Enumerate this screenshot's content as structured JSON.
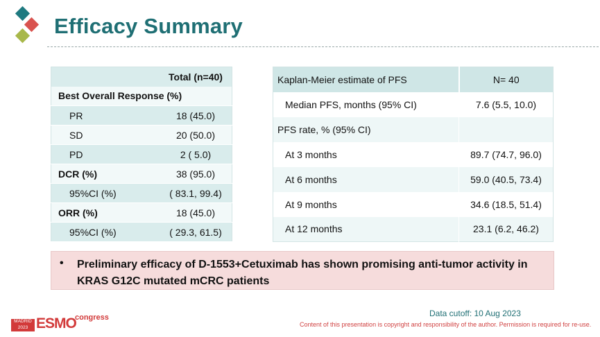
{
  "header": {
    "title": "Efficacy Summary"
  },
  "left_table": {
    "header": "Total (n=40)",
    "rows": [
      {
        "label": "Best Overall Response (%)",
        "value": ""
      },
      {
        "label": "PR",
        "value": "18 (45.0)"
      },
      {
        "label": "SD",
        "value": "20 (50.0)"
      },
      {
        "label": "PD",
        "value": "2 ( 5.0)"
      },
      {
        "label": "DCR (%)",
        "value": "38 (95.0)"
      },
      {
        "label": "95%CI (%)",
        "value": "( 83.1,  99.4)"
      },
      {
        "label": "ORR (%)",
        "value": "18 (45.0)"
      },
      {
        "label": "95%CI (%)",
        "value": "( 29.3,  61.5)"
      }
    ]
  },
  "right_table": {
    "header_label": "Kaplan-Meier estimate of PFS",
    "header_value": "N= 40",
    "rows": [
      {
        "label": "Median PFS, months  (95% CI)",
        "value": "7.6 (5.5, 10.0)"
      },
      {
        "label": "PFS rate, % (95% CI)",
        "value": ""
      },
      {
        "label": "At 3 months",
        "value": "89.7 (74.7, 96.0)"
      },
      {
        "label": "At 6 months",
        "value": "59.0 (40.5, 73.4)"
      },
      {
        "label": "At 9 months",
        "value": "34.6 (18.5, 51.4)"
      },
      {
        "label": "At 12 months",
        "value": "23.1 (6.2, 46.2)"
      }
    ]
  },
  "callout": {
    "bullet": "•",
    "text": "Preliminary efficacy of D-1553+Cetuximab has shown promising anti-tumor activity in KRAS G12C mutated mCRC patients"
  },
  "footer": {
    "cutoff": "Data cutoff: 10 Aug 2023",
    "copyright": "Content of this presentation is copyright and responsibility of the author. Permission is required for re-use.",
    "logo_city": "MADRID",
    "logo_year": "2023",
    "logo_word": "ESMO",
    "logo_congress": "congress"
  },
  "colors": {
    "title": "#1f6f74",
    "table_header": "#cfe6e6",
    "callout_bg": "#f6dcdc",
    "esmo_red": "#d23a3a"
  }
}
